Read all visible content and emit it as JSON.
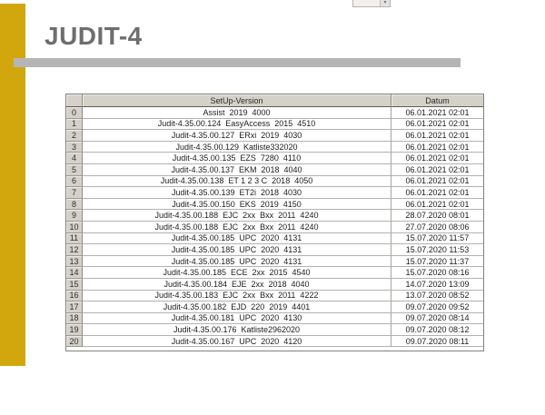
{
  "slide": {
    "title": "JUDIT-4"
  },
  "viewer": {
    "dropdown_arrow": "▾"
  },
  "colors": {
    "accent_yellow": "#d2a70d",
    "title_gray": "#6f6d6d",
    "divider_gray": "#b5b5b5",
    "grid_header_bg": "#d5d1c9"
  },
  "table": {
    "columns": {
      "index": "",
      "setup": "SetUp-Version",
      "datum": "Datum"
    },
    "rows": [
      {
        "idx": "0",
        "setup": "Assist  2019  4000",
        "datum": "06.01.2021 02:01"
      },
      {
        "idx": "1",
        "setup": "Judit-4.35.00.124  EasyAccess  2015  4510",
        "datum": "06.01.2021 02:01"
      },
      {
        "idx": "2",
        "setup": "Judit-4.35.00.127  ERxi  2019  4030",
        "datum": "06.01.2021 02:01"
      },
      {
        "idx": "3",
        "setup": "Judit-4.35.00.129  Katliste332020",
        "datum": "06.01.2021 02:01"
      },
      {
        "idx": "4",
        "setup": "Judit-4.35.00.135  EZS  7280  4110",
        "datum": "06.01.2021 02:01"
      },
      {
        "idx": "5",
        "setup": "Judit-4.35.00.137  EKM  2018  4040",
        "datum": "06.01.2021 02:01"
      },
      {
        "idx": "6",
        "setup": "Judit-4.35.00.138  ET 1 2 3 C  2018  4050",
        "datum": "06.01.2021 02:01"
      },
      {
        "idx": "7",
        "setup": "Judit-4.35.00.139  ET2i  2018  4030",
        "datum": "06.01.2021 02:01"
      },
      {
        "idx": "8",
        "setup": "Judit-4.35.00.150  EKS  2019  4150",
        "datum": "06.01.2021 02:01"
      },
      {
        "idx": "9",
        "setup": "Judit-4.35.00.188  EJC  2xx  Bxx  2011  4240",
        "datum": "28.07.2020 08:01"
      },
      {
        "idx": "10",
        "setup": "Judit-4.35.00.188  EJC  2xx  Bxx  2011  4240",
        "datum": "27.07.2020 08:06"
      },
      {
        "idx": "11",
        "setup": "Judit-4.35.00.185  UPC  2020  4131",
        "datum": "15.07.2020 11:57"
      },
      {
        "idx": "12",
        "setup": "Judit-4.35.00.185  UPC  2020  4131",
        "datum": "15.07.2020 11:53"
      },
      {
        "idx": "13",
        "setup": "Judit-4.35.00.185  UPC  2020  4131",
        "datum": "15.07.2020 11:37"
      },
      {
        "idx": "14",
        "setup": "Judit-4.35.00.185  ECE  2xx  2015  4540",
        "datum": "15.07.2020 08:16"
      },
      {
        "idx": "15",
        "setup": "Judit-4.35.00.184  EJE  2xx  2018  4040",
        "datum": "14.07.2020 13:09"
      },
      {
        "idx": "16",
        "setup": "Judit-4.35.00.183  EJC  2xx  Bxx  2011  4222",
        "datum": "13.07.2020 08:52"
      },
      {
        "idx": "17",
        "setup": "Judit-4.35.00.182  EJD  220  2019  4401",
        "datum": "09.07.2020 09:52"
      },
      {
        "idx": "18",
        "setup": "Judit-4.35.00.181  UPC  2020  4130",
        "datum": "09.07.2020 08:14"
      },
      {
        "idx": "19",
        "setup": "Judit-4.35.00.176  Katliste2962020",
        "datum": "09.07.2020 08:12"
      },
      {
        "idx": "20",
        "setup": "Judit-4.35.00.167  UPC  2020  4120",
        "datum": "09.07.2020 08:11"
      }
    ]
  }
}
